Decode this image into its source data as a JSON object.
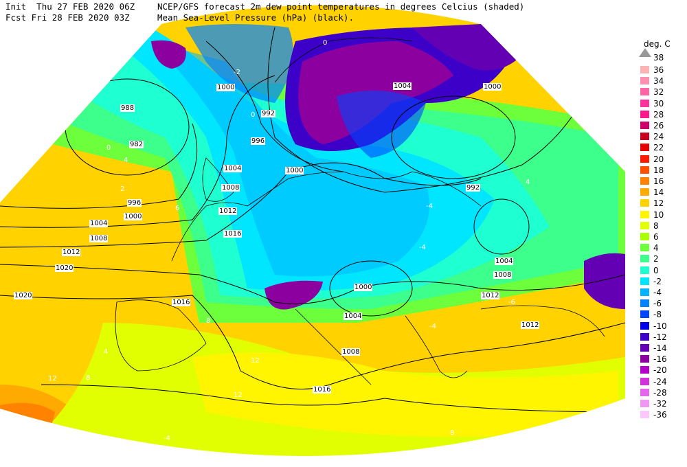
{
  "header": {
    "init_label": "Init",
    "init_time": "Thu 27 FEB 2020 06Z",
    "fcst_label": "Fcst",
    "fcst_time": "Fri 28 FEB 2020 03Z",
    "line1": "NCEP/GFS forecast 2m dew point temperatures in degrees Celcius (shaded)",
    "line2": "Mean Sea-Level Pressure (hPa) (black)."
  },
  "legend": {
    "unit": "deg. C",
    "top": "38",
    "items": [
      {
        "label": "36",
        "color": "#ffb3b3"
      },
      {
        "label": "34",
        "color": "#ff8fb0"
      },
      {
        "label": "32",
        "color": "#ff66a3"
      },
      {
        "label": "30",
        "color": "#ff3399"
      },
      {
        "label": "28",
        "color": "#ff1a8c"
      },
      {
        "label": "26",
        "color": "#cc0066"
      },
      {
        "label": "24",
        "color": "#c8001e"
      },
      {
        "label": "22",
        "color": "#e60000"
      },
      {
        "label": "20",
        "color": "#ff1a00"
      },
      {
        "label": "18",
        "color": "#ff5000"
      },
      {
        "label": "16",
        "color": "#ff8200"
      },
      {
        "label": "14",
        "color": "#ffaa00"
      },
      {
        "label": "12",
        "color": "#ffd200"
      },
      {
        "label": "10",
        "color": "#fff500"
      },
      {
        "label": "8",
        "color": "#e1ff00"
      },
      {
        "label": "6",
        "color": "#aaff00"
      },
      {
        "label": "4",
        "color": "#6eff3c"
      },
      {
        "label": "2",
        "color": "#3cff8c"
      },
      {
        "label": "0",
        "color": "#1effd2"
      },
      {
        "label": "-2",
        "color": "#00e6ff"
      },
      {
        "label": "-4",
        "color": "#00b4ff"
      },
      {
        "label": "-6",
        "color": "#0082ff"
      },
      {
        "label": "-8",
        "color": "#0046ff"
      },
      {
        "label": "-10",
        "color": "#0000e6"
      },
      {
        "label": "-12",
        "color": "#3c00c8"
      },
      {
        "label": "-14",
        "color": "#6400b4"
      },
      {
        "label": "-16",
        "color": "#8c00a0"
      },
      {
        "label": "-20",
        "color": "#b400c8"
      },
      {
        "label": "-24",
        "color": "#d232dc"
      },
      {
        "label": "-28",
        "color": "#e664ee"
      },
      {
        "label": "-32",
        "color": "#f096f5"
      },
      {
        "label": "-36",
        "color": "#fac8fa"
      }
    ]
  },
  "isobar_labels": [
    "1000",
    "988",
    "992",
    "996",
    "982",
    "1004",
    "1008",
    "1012",
    "1016",
    "1020",
    "1000",
    "996",
    "992",
    "1004",
    "1000",
    "1008",
    "1012",
    "1016",
    "1020",
    "1004",
    "1000",
    "1008",
    "1012",
    "1004",
    "1008",
    "1016",
    "1012",
    "1004",
    "1000"
  ],
  "dewpoint_labels": [
    "0",
    "-2",
    "-4",
    "0",
    "4",
    "8",
    "12",
    "-4",
    "-4",
    "2",
    "4",
    "6",
    "8",
    "12",
    "0",
    "4",
    "-6",
    "-4",
    "12",
    "8"
  ]
}
